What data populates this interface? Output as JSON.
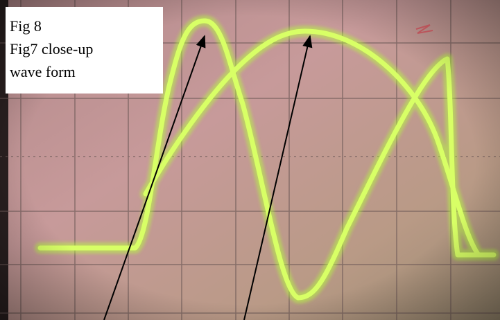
{
  "caption": {
    "lines": [
      "Fig 8",
      "Fig7 close-up",
      "wave form"
    ]
  }
}
